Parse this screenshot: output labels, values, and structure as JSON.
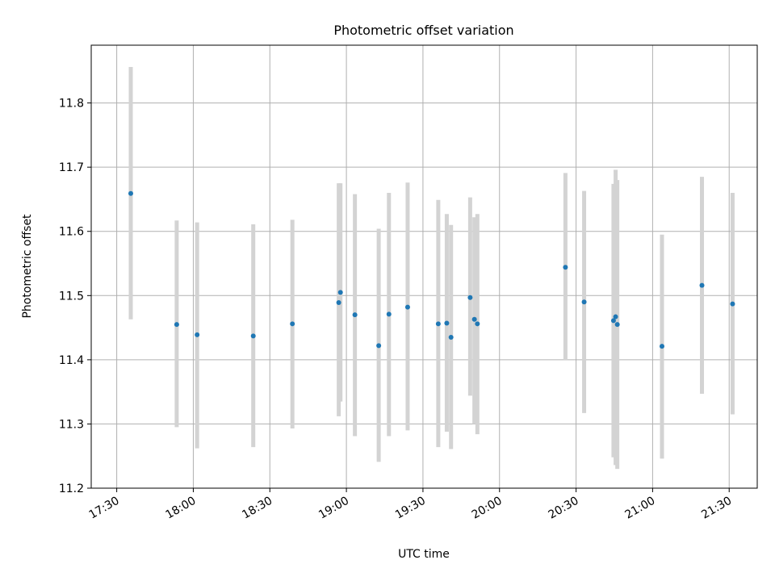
{
  "chart_data": {
    "type": "scatter",
    "title": "Photometric offset variation",
    "xlabel": "UTC time",
    "ylabel": "Photometric offset",
    "x_unit": "time (HH:MM UTC)",
    "xlim": [
      "17:20",
      "21:41"
    ],
    "ylim": [
      11.2,
      11.89
    ],
    "x_ticks": [
      "17:30",
      "18:00",
      "18:30",
      "19:00",
      "19:30",
      "20:00",
      "20:30",
      "21:00",
      "21:30"
    ],
    "y_ticks": [
      "11.2",
      "11.3",
      "11.4",
      "11.5",
      "11.6",
      "11.7",
      "11.8"
    ],
    "grid": true,
    "errorbar_color": "#d3d3d3",
    "point_color": "#1f77b4",
    "series": [
      {
        "points": [
          {
            "x": "17:35:30",
            "y": 11.659,
            "lo": 11.463,
            "hi": 11.856
          },
          {
            "x": "17:53:30",
            "y": 11.455,
            "lo": 11.295,
            "hi": 11.617
          },
          {
            "x": "18:01:30",
            "y": 11.439,
            "lo": 11.262,
            "hi": 11.614
          },
          {
            "x": "18:23:30",
            "y": 11.437,
            "lo": 11.264,
            "hi": 11.611
          },
          {
            "x": "18:38:50",
            "y": 11.456,
            "lo": 11.293,
            "hi": 11.618
          },
          {
            "x": "18:57:00",
            "y": 11.489,
            "lo": 11.312,
            "hi": 11.675
          },
          {
            "x": "18:57:40",
            "y": 11.505,
            "lo": 11.335,
            "hi": 11.675
          },
          {
            "x": "19:03:20",
            "y": 11.47,
            "lo": 11.281,
            "hi": 11.658
          },
          {
            "x": "19:12:40",
            "y": 11.422,
            "lo": 11.241,
            "hi": 11.604
          },
          {
            "x": "19:16:40",
            "y": 11.471,
            "lo": 11.281,
            "hi": 11.66
          },
          {
            "x": "19:24:00",
            "y": 11.482,
            "lo": 11.29,
            "hi": 11.676
          },
          {
            "x": "19:36:00",
            "y": 11.456,
            "lo": 11.264,
            "hi": 11.649
          },
          {
            "x": "19:39:20",
            "y": 11.457,
            "lo": 11.288,
            "hi": 11.627
          },
          {
            "x": "19:41:00",
            "y": 11.435,
            "lo": 11.261,
            "hi": 11.61
          },
          {
            "x": "19:48:30",
            "y": 11.497,
            "lo": 11.344,
            "hi": 11.653
          },
          {
            "x": "19:50:10",
            "y": 11.463,
            "lo": 11.3,
            "hi": 11.622
          },
          {
            "x": "19:51:20",
            "y": 11.456,
            "lo": 11.284,
            "hi": 11.627
          },
          {
            "x": "20:25:50",
            "y": 11.544,
            "lo": 11.399,
            "hi": 11.691
          },
          {
            "x": "20:33:10",
            "y": 11.49,
            "lo": 11.317,
            "hi": 11.663
          },
          {
            "x": "20:44:40",
            "y": 11.461,
            "lo": 11.248,
            "hi": 11.674
          },
          {
            "x": "20:45:30",
            "y": 11.467,
            "lo": 11.236,
            "hi": 11.696
          },
          {
            "x": "20:46:10",
            "y": 11.455,
            "lo": 11.23,
            "hi": 11.68
          },
          {
            "x": "21:03:40",
            "y": 11.421,
            "lo": 11.246,
            "hi": 11.595
          },
          {
            "x": "21:19:20",
            "y": 11.516,
            "lo": 11.347,
            "hi": 11.685
          },
          {
            "x": "21:31:20",
            "y": 11.487,
            "lo": 11.315,
            "hi": 11.66
          }
        ]
      }
    ]
  }
}
